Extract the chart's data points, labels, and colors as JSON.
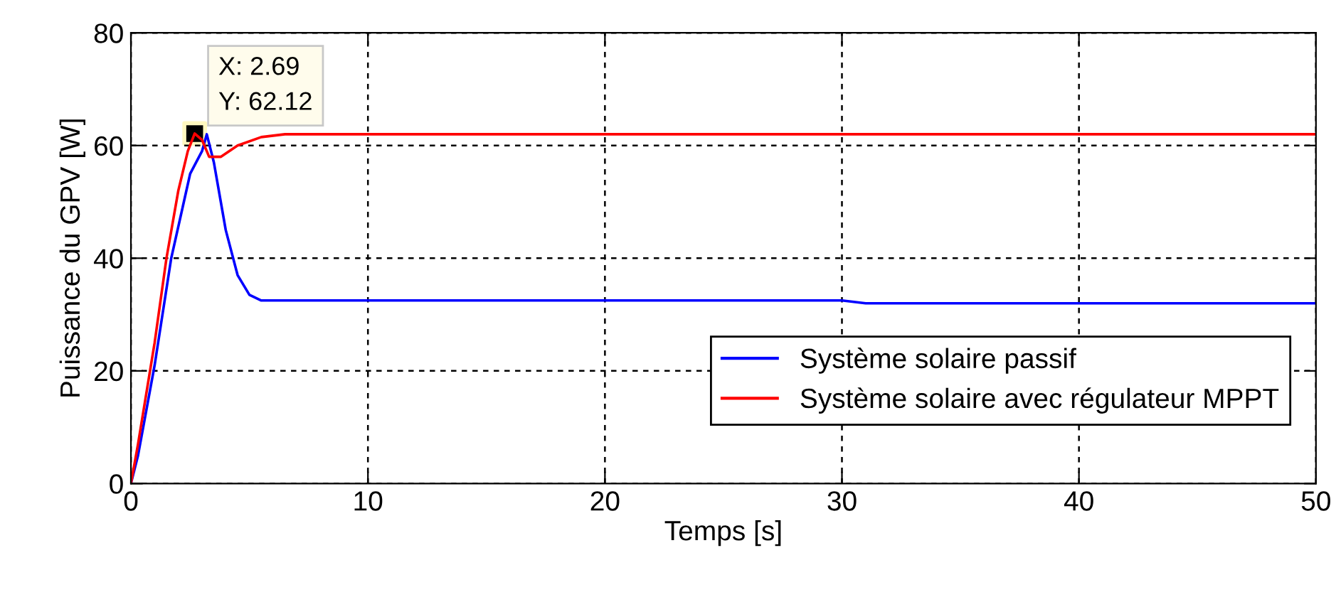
{
  "chart_data": {
    "type": "line",
    "xlabel": "Temps [s]",
    "ylabel": "Puissance du GPV [W]",
    "xlim": [
      0,
      50
    ],
    "ylim": [
      0,
      80
    ],
    "xticks": [
      0,
      10,
      20,
      30,
      40,
      50
    ],
    "yticks": [
      0,
      20,
      40,
      60,
      80
    ],
    "grid": true,
    "legend": "bottom right",
    "line_style": "solid",
    "series": [
      {
        "name": "Système solaire passif",
        "color": "#0000ff",
        "x": [
          0,
          0.3,
          1,
          1.7,
          2.5,
          3.0,
          3.2,
          3.5,
          4,
          4.5,
          5,
          5.5,
          30,
          31,
          50
        ],
        "values": [
          0,
          5,
          21,
          40,
          55,
          59,
          62,
          57,
          45,
          37,
          33.5,
          32.5,
          32.5,
          32,
          32
        ]
      },
      {
        "name": "Système solaire avec régulateur MPPT",
        "color": "#ff0000",
        "x": [
          0,
          0.3,
          1,
          1.5,
          2,
          2.4,
          2.69,
          3,
          3.3,
          3.8,
          4.5,
          5.5,
          6.5,
          50
        ],
        "values": [
          0,
          7,
          25,
          40,
          52,
          59,
          62.12,
          61,
          58,
          58,
          60,
          61.5,
          62,
          62
        ]
      },
      {
        "type": "scatter",
        "marker": "square",
        "color": "#000000",
        "x": [
          2.69
        ],
        "values": [
          62.12
        ]
      }
    ],
    "annotations": [
      {
        "text": "X: 2.69\nY: 62.12",
        "x": 2.69,
        "y": 62.12
      }
    ]
  }
}
